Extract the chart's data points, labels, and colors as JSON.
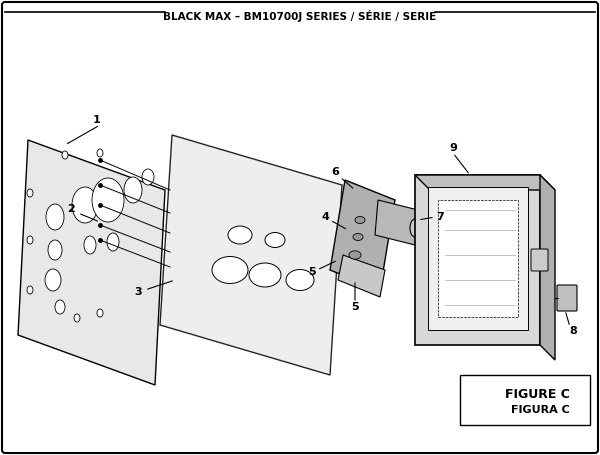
{
  "title": "BLACK MAX – BM10700J SERIES / SÉRIE / SERIE",
  "figure_label": "FIGURE C",
  "figure_label2": "FIGURA C",
  "bg_color": "#ffffff",
  "border_color": "#000000",
  "line_color": "#000000",
  "part_color": "#cccccc",
  "part_color_dark": "#888888",
  "part_color_mid": "#aaaaaa"
}
